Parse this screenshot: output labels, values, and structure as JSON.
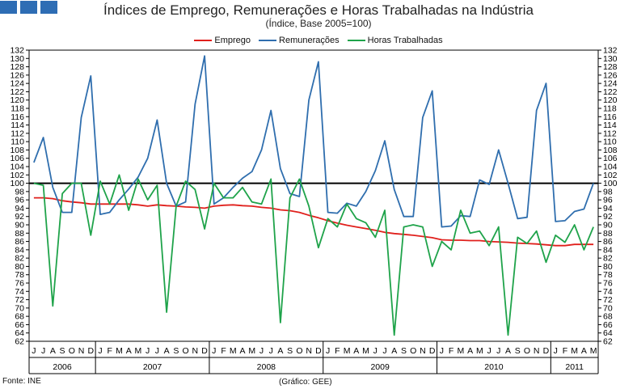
{
  "header": {
    "title": "Índices de Emprego, Remunerações e Horas Trabalhadas na Indústria",
    "subtitle": "(Índice, Base 2005=100)"
  },
  "footer": {
    "source": "Fonte: INE",
    "credit": "(Gráfico: GEE)"
  },
  "colors": {
    "logo": "#2e6db4"
  },
  "chart_data": {
    "type": "line",
    "title": "Índices de Emprego, Remunerações e Horas Trabalhadas na Indústria",
    "subtitle": "(Índice, Base 2005=100)",
    "ylim": [
      62,
      132
    ],
    "y_ticks": [
      62,
      64,
      66,
      68,
      70,
      72,
      74,
      76,
      78,
      80,
      82,
      84,
      86,
      88,
      90,
      92,
      94,
      96,
      98,
      100,
      102,
      104,
      106,
      108,
      110,
      112,
      114,
      116,
      118,
      120,
      122,
      124,
      126,
      128,
      130,
      132
    ],
    "reference_line": 100,
    "legend_position": "top-center",
    "month_labels": [
      "J",
      "J",
      "A",
      "S",
      "O",
      "N",
      "D",
      "J",
      "F",
      "M",
      "A",
      "M",
      "J",
      "J",
      "A",
      "S",
      "O",
      "N",
      "D",
      "J",
      "F",
      "M",
      "A",
      "M",
      "J",
      "J",
      "A",
      "S",
      "O",
      "N",
      "D",
      "J",
      "F",
      "M",
      "A",
      "M",
      "J",
      "J",
      "A",
      "S",
      "O",
      "N",
      "D",
      "J",
      "F",
      "M",
      "A",
      "M",
      "J",
      "J",
      "A",
      "S",
      "O",
      "N",
      "D",
      "J",
      "F",
      "M",
      "A",
      "M"
    ],
    "years": [
      {
        "label": "2006",
        "start": 0,
        "count": 7
      },
      {
        "label": "2007",
        "start": 7,
        "count": 12
      },
      {
        "label": "2008",
        "start": 19,
        "count": 12
      },
      {
        "label": "2009",
        "start": 31,
        "count": 12
      },
      {
        "label": "2010",
        "start": 43,
        "count": 12
      },
      {
        "label": "2011",
        "start": 55,
        "count": 5
      }
    ],
    "series": [
      {
        "name": "Emprego",
        "color": "#e0201c",
        "values": [
          96.5,
          96.5,
          96.3,
          95.8,
          95.5,
          95.3,
          95.0,
          95.0,
          95.0,
          95.0,
          95.0,
          94.8,
          94.5,
          94.8,
          94.6,
          94.5,
          94.3,
          94.2,
          94.0,
          94.5,
          94.7,
          94.8,
          94.6,
          94.5,
          94.2,
          94.0,
          93.6,
          93.4,
          93.0,
          92.3,
          91.7,
          91.0,
          90.4,
          89.9,
          89.5,
          89.1,
          88.7,
          88.2,
          87.9,
          87.7,
          87.5,
          87.2,
          86.9,
          86.4,
          86.3,
          86.3,
          86.2,
          86.2,
          86.0,
          85.9,
          85.8,
          85.6,
          85.5,
          85.4,
          85.2,
          85.0,
          85.0,
          85.3,
          85.3,
          85.3
        ]
      },
      {
        "name": "Remunerações",
        "color": "#2f6eae",
        "values": [
          105.0,
          111.0,
          99.0,
          93.0,
          93.0,
          115.8,
          125.8,
          92.5,
          93.0,
          96.0,
          98.6,
          101.5,
          106.0,
          115.2,
          100.0,
          94.5,
          95.5,
          119.0,
          130.6,
          95.0,
          96.5,
          99.0,
          101.2,
          102.8,
          108.0,
          117.5,
          103.5,
          97.5,
          96.8,
          120.0,
          129.2,
          93.0,
          92.8,
          95.2,
          94.5,
          98.0,
          103.0,
          110.2,
          98.5,
          92.0,
          92.0,
          115.8,
          122.2,
          89.5,
          89.7,
          92.2,
          92.0,
          100.8,
          99.7,
          108.0,
          100.0,
          91.5,
          91.8,
          117.5,
          124.0,
          90.8,
          91.0,
          93.2,
          93.8,
          100.0
        ]
      },
      {
        "name": "Horas Trabalhadas",
        "color": "#1fa34a",
        "values": [
          100.0,
          99.5,
          70.5,
          97.5,
          100.0,
          100.0,
          87.5,
          100.5,
          95.0,
          102.0,
          93.5,
          101.0,
          96.0,
          99.5,
          69.0,
          94.5,
          100.5,
          98.5,
          89.0,
          100.0,
          96.5,
          96.5,
          99.0,
          95.5,
          95.0,
          101.0,
          66.5,
          96.5,
          101.0,
          94.5,
          84.5,
          91.5,
          89.5,
          95.0,
          91.5,
          90.5,
          87.0,
          93.5,
          63.5,
          89.5,
          90.0,
          89.5,
          80.0,
          86.0,
          84.0,
          93.5,
          88.0,
          88.5,
          85.0,
          89.5,
          63.5,
          87.0,
          85.5,
          88.5,
          81.0,
          87.5,
          85.8,
          90.0,
          84.0,
          89.5
        ]
      }
    ]
  }
}
